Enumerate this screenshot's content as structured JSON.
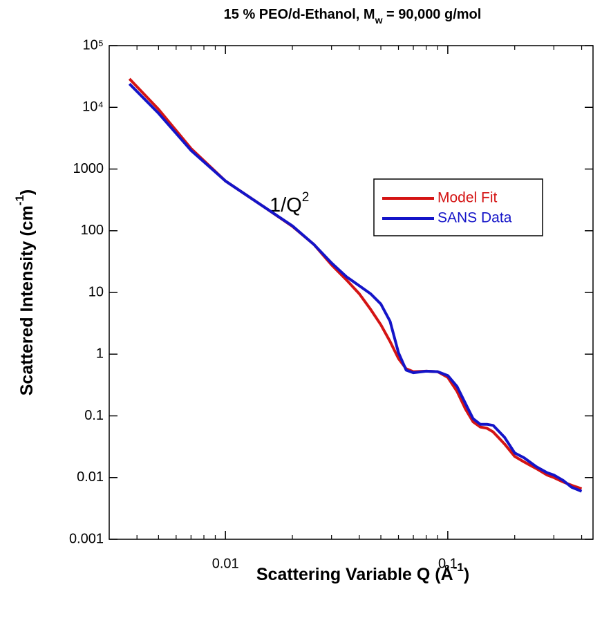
{
  "chart_data": {
    "type": "line",
    "title": [
      "15 % PEO/d-Ethanol, M",
      "w",
      " = 90,000 g/mol"
    ],
    "xlabel": [
      "Scattering Variable Q (Å",
      "-1",
      ")"
    ],
    "ylabel": [
      "Scattered Intensity (cm",
      "-1",
      ")"
    ],
    "annotation": [
      "1/Q",
      "2"
    ],
    "xscale": "log",
    "yscale": "log",
    "xlim": [
      0.003,
      0.45
    ],
    "ylim": [
      0.001,
      100000
    ],
    "xticks": [
      0.01,
      0.1
    ],
    "xminorticks": [
      0.004,
      0.005,
      0.006,
      0.007,
      0.008,
      0.009,
      0.02,
      0.03,
      0.04,
      0.05,
      0.06,
      0.07,
      0.08,
      0.09,
      0.2,
      0.3,
      0.4
    ],
    "yticks": [
      {
        "value": 100000,
        "label": "10⁵"
      },
      {
        "value": 10000,
        "label": "10⁴"
      },
      1000,
      100,
      10,
      1,
      0.1,
      0.01,
      0.001
    ],
    "x": [
      0.0037,
      0.005,
      0.007,
      0.01,
      0.015,
      0.02,
      0.025,
      0.03,
      0.035,
      0.04,
      0.045,
      0.05,
      0.055,
      0.06,
      0.065,
      0.07,
      0.08,
      0.09,
      0.1,
      0.11,
      0.12,
      0.13,
      0.14,
      0.15,
      0.16,
      0.18,
      0.2,
      0.22,
      0.25,
      0.28,
      0.3,
      0.33,
      0.36,
      0.4
    ],
    "series": [
      {
        "name": "Model Fit",
        "color": "#d41414",
        "values": [
          29000,
          9300,
          2150,
          640,
          240,
          118,
          60,
          28,
          16,
          9.5,
          5.3,
          3.0,
          1.6,
          0.85,
          0.58,
          0.52,
          0.53,
          0.52,
          0.42,
          0.25,
          0.13,
          0.08,
          0.066,
          0.063,
          0.055,
          0.035,
          0.022,
          0.018,
          0.014,
          0.011,
          0.01,
          0.0085,
          0.0075,
          0.0066
        ]
      },
      {
        "name": "SANS Data",
        "color": "#1414c8",
        "values": [
          24000,
          8000,
          2000,
          640,
          240,
          120,
          60,
          30,
          18,
          12.8,
          9.5,
          6.5,
          3.4,
          1.06,
          0.55,
          0.5,
          0.53,
          0.52,
          0.45,
          0.3,
          0.16,
          0.09,
          0.073,
          0.073,
          0.07,
          0.045,
          0.025,
          0.021,
          0.015,
          0.012,
          0.011,
          0.009,
          0.007,
          0.006
        ]
      }
    ]
  }
}
